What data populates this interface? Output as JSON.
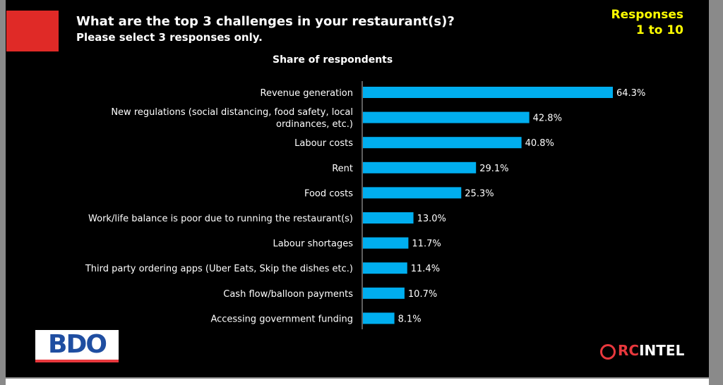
{
  "header": {
    "title": "What are the top 3 challenges in your restaurant(s)?",
    "subtitle": "Please select 3 responses only.",
    "responses_line1": "Responses",
    "responses_line2": "1 to 10"
  },
  "logos": {
    "left": "BDO",
    "right_a": "RC",
    "right_b": "INTEL"
  },
  "colors": {
    "bar": "#00aeef",
    "accent": "#e02a27",
    "highlight": "#ffff00"
  },
  "chart_data": {
    "type": "bar",
    "orientation": "horizontal",
    "title": "Share of respondents",
    "categories": [
      [
        "Revenue generation"
      ],
      [
        "New regulations (social distancing, food safety, local",
        "ordinances, etc.)"
      ],
      [
        "Labour costs"
      ],
      [
        "Rent"
      ],
      [
        "Food costs"
      ],
      [
        "Work/life balance is poor due to running the restaurant(s)"
      ],
      [
        "Labour shortages"
      ],
      [
        "Third party ordering apps (Uber Eats, Skip the dishes etc.)"
      ],
      [
        "Cash flow/balloon payments"
      ],
      [
        "Accessing government funding"
      ]
    ],
    "values": [
      64.3,
      42.8,
      40.8,
      29.1,
      25.3,
      13.0,
      11.7,
      11.4,
      10.7,
      8.1
    ],
    "labels": [
      "64.3%",
      "42.8%",
      "40.8%",
      "29.1%",
      "25.3%",
      "13.0%",
      "11.7%",
      "11.4%",
      "10.7%",
      "8.1%"
    ],
    "xlim": [
      0,
      70
    ],
    "grid": false
  }
}
